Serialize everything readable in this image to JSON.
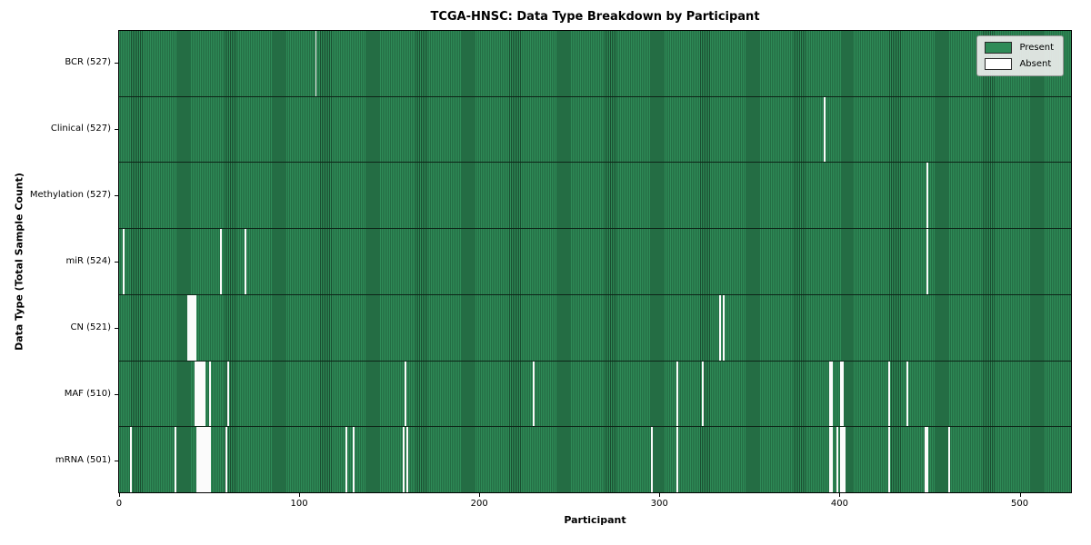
{
  "title": "TCGA-HNSC: Data Type Breakdown by Participant",
  "xlabel": "Participant",
  "ylabel": "Data Type (Total Sample Count)",
  "legend": {
    "present_label": "Present",
    "absent_label": "Absent"
  },
  "colors": {
    "present": "#2e8b57",
    "present_edge": "#1a4f31",
    "absent": "#fbfbfb",
    "plot_border": "#000000",
    "legend_bg": "#ebedeb"
  },
  "chart_data": {
    "type": "heatmap",
    "title": "TCGA-HNSC: Data Type Breakdown by Participant",
    "xlabel": "Participant",
    "ylabel": "Data Type (Total Sample Count)",
    "legend_entries": [
      "Present",
      "Absent"
    ],
    "legend_position": "upper right",
    "n_participants": 528,
    "x_axis": {
      "min": -0.5,
      "max": 529.0,
      "ticks": [
        0,
        100,
        200,
        300,
        400,
        500
      ]
    },
    "rows": [
      {
        "data_type": "BCR",
        "label": "BCR (527)",
        "present_count": 527,
        "absent_participants": [
          109
        ]
      },
      {
        "data_type": "Clinical",
        "label": "Clinical (527)",
        "present_count": 527,
        "absent_participants": [
          392
        ]
      },
      {
        "data_type": "Methylation",
        "label": "Methylation (527)",
        "present_count": 527,
        "absent_participants": [
          449
        ]
      },
      {
        "data_type": "miR",
        "label": "miR (524)",
        "present_count": 524,
        "absent_participants": [
          2,
          56,
          70,
          449
        ]
      },
      {
        "data_type": "CN",
        "label": "CN (521)",
        "present_count": 521,
        "absent_participants": [
          38,
          39,
          40,
          41,
          42,
          334,
          336
        ]
      },
      {
        "data_type": "MAF",
        "label": "MAF (510)",
        "present_count": 510,
        "absent_participants": [
          42,
          43,
          44,
          45,
          46,
          47,
          50,
          60,
          159,
          230,
          310,
          324,
          395,
          396,
          401,
          402,
          428,
          438
        ]
      },
      {
        "data_type": "mRNA",
        "label": "mRNA (501)",
        "present_count": 501,
        "absent_participants": [
          6,
          31,
          43,
          44,
          45,
          46,
          47,
          48,
          49,
          50,
          59,
          126,
          130,
          158,
          160,
          296,
          310,
          395,
          396,
          399,
          401,
          402,
          403,
          428,
          448,
          449,
          461
        ]
      }
    ]
  }
}
